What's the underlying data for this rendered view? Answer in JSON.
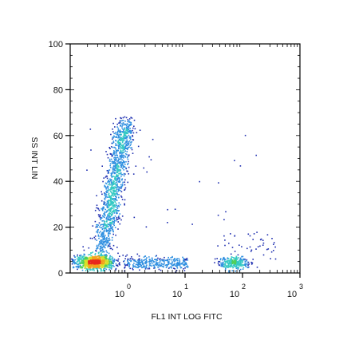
{
  "chart_data": {
    "type": "scatter",
    "subtype": "flow-cytometry-density-dot-plot",
    "xlabel": "FL1 INT LOG  FITC",
    "ylabel": "SS INT LIN",
    "x_scale": "log",
    "xlim": [
      0.1,
      1000
    ],
    "ylim": [
      0,
      100
    ],
    "x_ticks": [
      {
        "value": 1,
        "base": "10",
        "exp": "0"
      },
      {
        "value": 10,
        "base": "10",
        "exp": "1"
      },
      {
        "value": 100,
        "base": "10",
        "exp": "2"
      },
      {
        "value": 1000,
        "base": "10",
        "exp": "3"
      }
    ],
    "y_ticks": [
      "0",
      "20",
      "40",
      "60",
      "80",
      "100"
    ],
    "grid": false,
    "legend": "none",
    "density_colors": [
      "#1f2fb0",
      "#2f8fe0",
      "#35c9c4",
      "#4fcf5a",
      "#d8e02a",
      "#f2a21c",
      "#e8281c"
    ],
    "populations": [
      {
        "name": "dense-low-cluster",
        "center_x": 0.22,
        "center_y": 5,
        "count": 900
      },
      {
        "name": "tall-vertical-streak",
        "center_x": 0.6,
        "center_y": 32,
        "count": 1300
      },
      {
        "name": "horizontal-low-tail",
        "center_x": 2.5,
        "center_y": 5,
        "count": 350
      },
      {
        "name": "bright-fitc-cluster",
        "center_x": 75,
        "center_y": 5,
        "count": 280
      }
    ]
  }
}
